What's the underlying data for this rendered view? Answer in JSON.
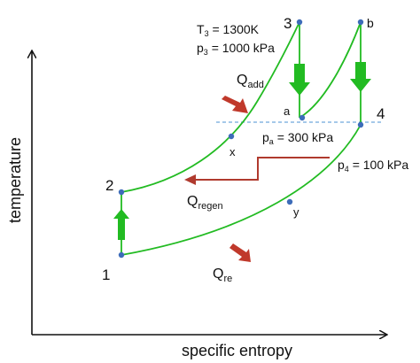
{
  "axes": {
    "x_label": "specific entropy",
    "y_label": "temperature"
  },
  "state_labels": {
    "s1": "1",
    "s2": "2",
    "s3": "3",
    "s4": "4",
    "a": "a",
    "b": "b",
    "x": "x",
    "y": "y"
  },
  "annotations": {
    "t3_prefix": "T",
    "t3_sub": "3",
    "t3_value": " = 1300K",
    "p3_prefix": "p",
    "p3_sub": "3",
    "p3_value": " = 1000 kPa",
    "pa_prefix": "p",
    "pa_sub": "a",
    "pa_value": " = 300 kPa",
    "p4_prefix": "p",
    "p4_sub": "4",
    "p4_value": " = 100 kPa",
    "qadd_main": "Q",
    "qadd_sub": "add",
    "qregen_main": "Q",
    "qregen_sub": "regen",
    "qre_main": "Q",
    "qre_sub": "re"
  },
  "colors": {
    "curve": "#22bb22",
    "process_arrow": "#22bb22",
    "heat_arrow": "#c0392b",
    "regen_arrow": "#b03a2e",
    "isobar_dashed": "#6fa8dc",
    "point_fill": "#3d6cb9",
    "axis": "#111111"
  }
}
